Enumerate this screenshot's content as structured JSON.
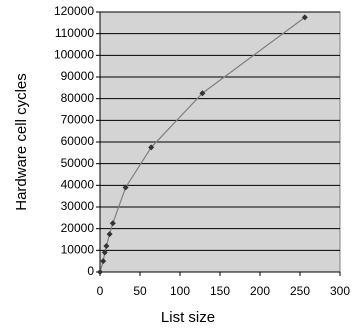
{
  "chart_data": {
    "type": "line",
    "xlabel": "List size",
    "ylabel": "Hardware cell cycles",
    "x": [
      0,
      4,
      6,
      8,
      12,
      16,
      32,
      64,
      128,
      256
    ],
    "values": [
      0,
      5000,
      9000,
      12000,
      17500,
      22500,
      39000,
      57500,
      82500,
      117500
    ],
    "color": "#7f7f7f",
    "marker_color": "#333333",
    "background": "#d4d4d4",
    "xlim": [
      0,
      300
    ],
    "xticks": [
      0,
      50,
      100,
      150,
      200,
      250,
      300
    ],
    "ylim": [
      0,
      120000
    ],
    "yticks": [
      0,
      10000,
      20000,
      30000,
      40000,
      50000,
      60000,
      70000,
      80000,
      90000,
      100000,
      110000,
      120000
    ],
    "grid": true
  }
}
